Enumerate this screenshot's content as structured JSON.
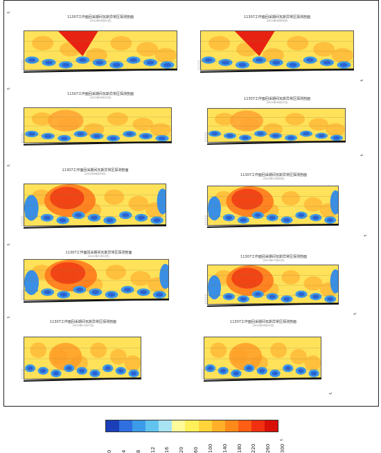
{
  "panels": [
    {
      "title": "11307工作面回采期间瓦斯异常区探测剖面",
      "subtitle": "(2022年06月01日)"
    },
    {
      "title": "11307工作面回采期间瓦斯异常区探测剖面",
      "subtitle": "(2022年06月08日)"
    },
    {
      "title": "11307工作面回采期间瓦斯异常区探测剖面",
      "subtitle": "(2022年06月15日)"
    },
    {
      "title": "11307工作面回采期间瓦斯异常区探测剖面",
      "subtitle": "(2022年06月22日)"
    },
    {
      "title": "11307工作面回采期间瓦斯异常区探测剖面",
      "subtitle": "(2022年06月29日)"
    },
    {
      "title": "11307工作面回采期间瓦斯异常区探测剖面",
      "subtitle": "(2022年07月06日)"
    },
    {
      "title": "11307工作面回采期间瓦斯异常区探测剖面",
      "subtitle": "(2022年07月13日)"
    },
    {
      "title": "11307工作面回采期间瓦斯异常区探测剖面",
      "subtitle": "(2022年07月20日)"
    },
    {
      "title": "11307工作面回采期间瓦斯异常区探测剖面",
      "subtitle": "(2022年07月27日)"
    },
    {
      "title": "11307工作面回采期间瓦斯异常区探测剖面",
      "subtitle": "(2022年08月03日)"
    }
  ],
  "paragraph_mark": "↵",
  "legend": {
    "ticks": [
      "0",
      "4",
      "8",
      "12",
      "16",
      "20",
      "60",
      "100",
      "140",
      "180",
      "220",
      "260",
      "300"
    ],
    "colors": [
      "#1a3fb8",
      "#2f6fe0",
      "#3c9be8",
      "#62c3ef",
      "#a8e3f2",
      "#fffb9a",
      "#fff05a",
      "#ffd43a",
      "#ffb028",
      "#ff8a1c",
      "#ff5e14",
      "#f03010",
      "#d81008"
    ]
  }
}
